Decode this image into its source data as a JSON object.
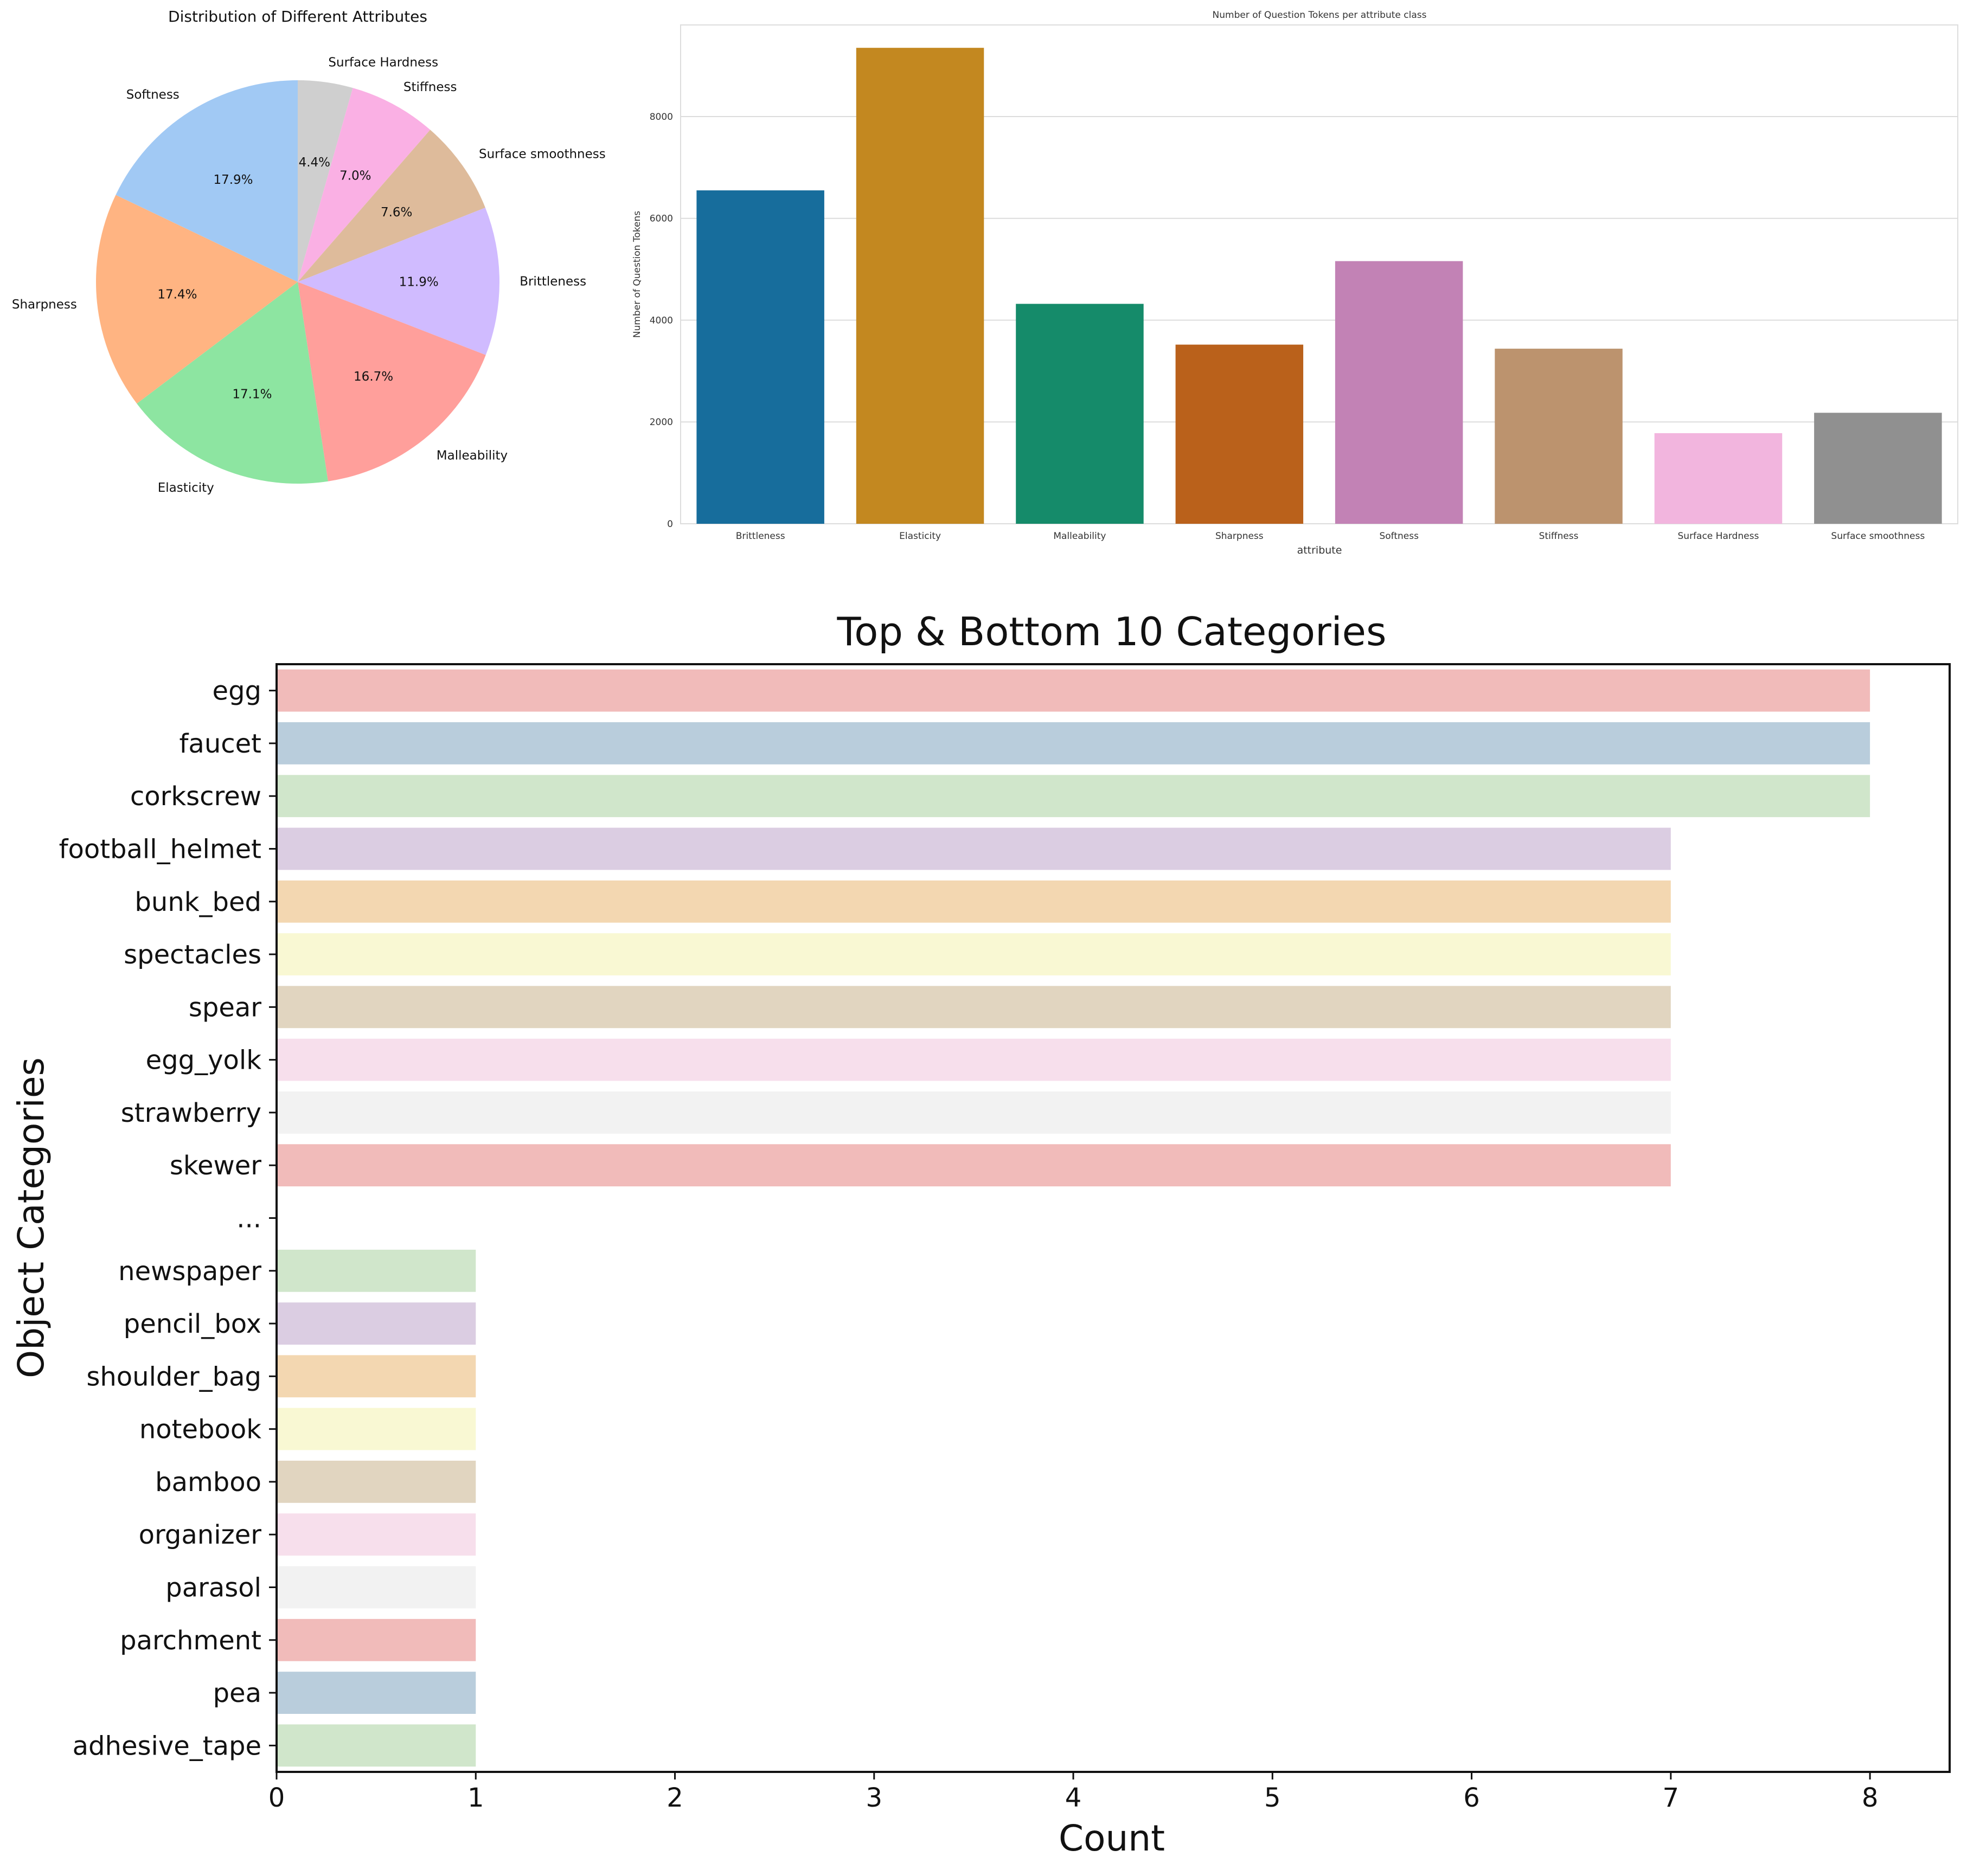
{
  "chart_data": [
    {
      "type": "pie",
      "title": "Distribution of Different Attributes",
      "start_angle_deg": 90,
      "direction": "clockwise",
      "slices": [
        {
          "label": "Surface Hardness",
          "value": 4.4,
          "pct_label": "4.4%",
          "color": "#cfcfcf"
        },
        {
          "label": "Stiffness",
          "value": 7.0,
          "pct_label": "7.0%",
          "color": "#fab0e4"
        },
        {
          "label": "Surface smoothness",
          "value": 7.6,
          "pct_label": "7.6%",
          "color": "#debb9b"
        },
        {
          "label": "Brittleness",
          "value": 11.9,
          "pct_label": "11.9%",
          "color": "#d0bbff"
        },
        {
          "label": "Malleability",
          "value": 16.7,
          "pct_label": "16.7%",
          "color": "#ff9f9b"
        },
        {
          "label": "Elasticity",
          "value": 17.1,
          "pct_label": "17.1%",
          "color": "#8de5a1"
        },
        {
          "label": "Sharpness",
          "value": 17.4,
          "pct_label": "17.4%",
          "color": "#ffb482"
        },
        {
          "label": "Softness",
          "value": 17.9,
          "pct_label": "17.9%",
          "color": "#a1c9f4"
        }
      ]
    },
    {
      "type": "bar",
      "title": "Number of Question Tokens per attribute class",
      "xlabel": "attribute",
      "ylabel": "Number of Question Tokens",
      "ylim": [
        0,
        9800
      ],
      "yticks": [
        0,
        2000,
        4000,
        6000,
        8000
      ],
      "grid": true,
      "categories": [
        "Brittleness",
        "Elasticity",
        "Malleability",
        "Sharpness",
        "Softness",
        "Stiffness",
        "Surface Hardness",
        "Surface smoothness"
      ],
      "values": [
        6550,
        9350,
        4320,
        3520,
        5160,
        3440,
        1780,
        2180
      ],
      "colors": [
        "#176d9c",
        "#c38820",
        "#158b6a",
        "#ba611b",
        "#c282b5",
        "#bc936e",
        "#f2b5de",
        "#909090"
      ]
    },
    {
      "type": "bar",
      "orientation": "horizontal",
      "title": "Top & Bottom 10 Categories",
      "xlabel": "Count",
      "ylabel": "Object Categories",
      "xlim": [
        0,
        8.4
      ],
      "xticks": [
        0,
        1,
        2,
        3,
        4,
        5,
        6,
        7,
        8
      ],
      "categories": [
        "egg",
        "faucet",
        "corkscrew",
        "football_helmet",
        "bunk_bed",
        "spectacles",
        "spear",
        "egg_yolk",
        "strawberry",
        "skewer",
        "...",
        "newspaper",
        "pencil_box",
        "shoulder_bag",
        "notebook",
        "bamboo",
        "organizer",
        "parasol",
        "parchment",
        "pea",
        "adhesive_tape"
      ],
      "values": [
        8,
        8,
        8,
        7,
        7,
        7,
        7,
        7,
        7,
        7,
        0,
        1,
        1,
        1,
        1,
        1,
        1,
        1,
        1,
        1,
        1
      ],
      "colors": [
        "#f1bbba",
        "#b9cddc",
        "#d0e6cb",
        "#dbcde2",
        "#f3d7b1",
        "#f9f8d3",
        "#e1d5c0",
        "#f7dfec",
        "#f2f2f2",
        "#f1bbba",
        "#ffffff",
        "#d0e6cb",
        "#dbcde2",
        "#f3d7b1",
        "#f9f8d3",
        "#e1d5c0",
        "#f7dfec",
        "#f2f2f2",
        "#f1bbba",
        "#b9cddc",
        "#d0e6cb"
      ]
    }
  ]
}
